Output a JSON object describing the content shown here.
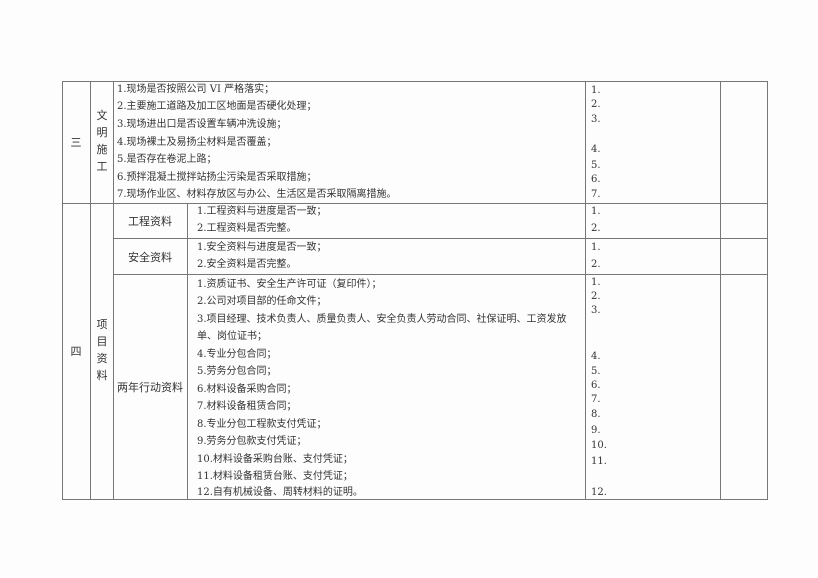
{
  "section3": {
    "number": "三",
    "category": "文明施工",
    "items": [
      "1.现场是否按照公司 VI 严格落实；",
      "2.主要施工道路及加工区地面是否硬化处理；",
      "3.现场进出口是否设置车辆冲洗设施；",
      "4.现场裸土及易扬尘材料是否覆盖；",
      "5.是否存在卷泥上路；",
      "6.预拌混凝土搅拌站扬尘污染是否采取措施；",
      "7.现场作业区、材料存放区与办公、生活区是否采取隔离措施。"
    ],
    "result_numbers": [
      "1.",
      "2.",
      "3.",
      "4.",
      "5.",
      "6.",
      "7."
    ]
  },
  "section4": {
    "number": "四",
    "category": "项目资料",
    "groups": [
      {
        "label": "工程资料",
        "items": [
          "1.工程资料与进度是否一致；",
          "2.工程资料是否完整。"
        ],
        "result_numbers": [
          "1.",
          "2."
        ]
      },
      {
        "label": "安全资料",
        "items": [
          "1.安全资料与进度是否一致；",
          "2.安全资料是否完整。"
        ],
        "result_numbers": [
          "1.",
          "2."
        ]
      },
      {
        "label": "两年行动资料",
        "items": [
          "1.资质证书、安全生产许可证（复印件）；",
          "2.公司对项目部的任命文件；",
          "3.项目经理、技术负责人、质量负责人、安全负责人劳动合同、社保证明、工资发放",
          "单、岗位证书；",
          "4.专业分包合同；",
          "5.劳务分包合同；",
          "6.材料设备采购合同；",
          "7.材料设备租赁合同；",
          "8.专业分包工程款支付凭证；",
          "9.劳务分包款支付凭证；",
          "10.材料设备采购台账、支付凭证；",
          "11.材料设备租赁台账、支付凭证；",
          "12.自有机械设备、周转材料的证明。"
        ],
        "result_numbers": [
          "1.",
          "2.",
          "3.",
          "4.",
          "5.",
          "6.",
          "7.",
          "8.",
          "9.",
          "10.",
          "11.",
          "12."
        ]
      }
    ]
  }
}
